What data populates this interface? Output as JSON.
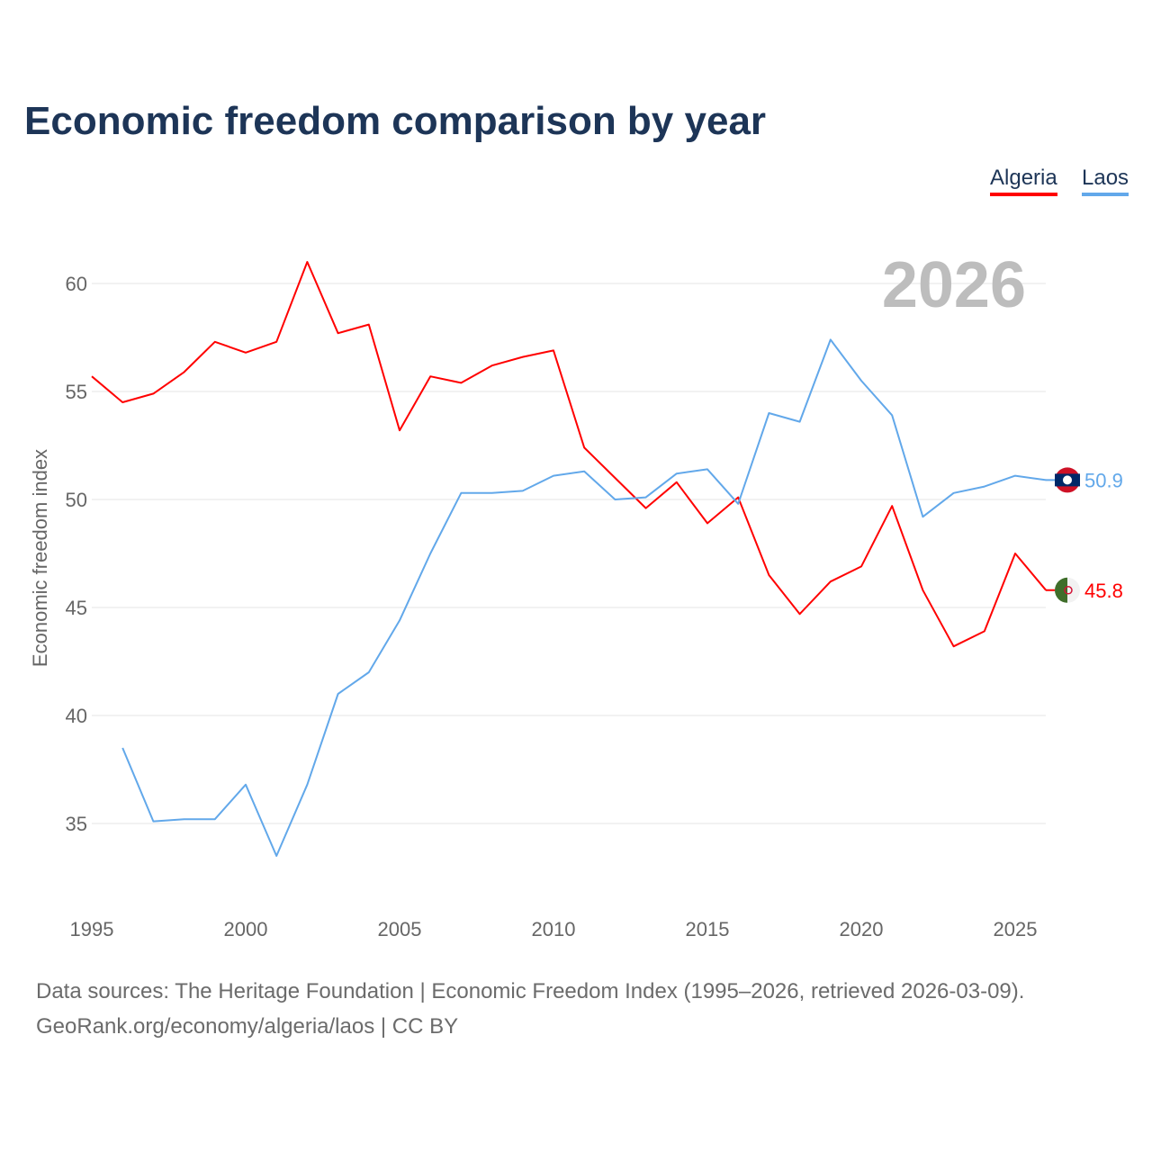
{
  "chart_data": {
    "type": "line",
    "title": "Economic freedom comparison by year",
    "ylabel": "Economic freedom index",
    "xlabel": "",
    "year_label": "2026",
    "xlim": [
      1995,
      2026
    ],
    "ylim": [
      31.5,
      62
    ],
    "x_ticks": [
      1995,
      2000,
      2005,
      2010,
      2015,
      2020,
      2025
    ],
    "y_ticks": [
      35,
      40,
      45,
      50,
      55,
      60
    ],
    "grid": true,
    "legend_position": "top-right",
    "series": [
      {
        "name": "Algeria",
        "color": "#ff0000",
        "end_label": "45.8",
        "x": [
          1995,
          1996,
          1997,
          1998,
          1999,
          2000,
          2001,
          2002,
          2003,
          2004,
          2005,
          2006,
          2007,
          2008,
          2009,
          2010,
          2011,
          2012,
          2013,
          2014,
          2015,
          2016,
          2017,
          2018,
          2019,
          2020,
          2021,
          2022,
          2023,
          2024,
          2025,
          2026
        ],
        "values": [
          55.7,
          54.5,
          54.9,
          55.9,
          57.3,
          56.8,
          57.3,
          61.0,
          57.7,
          58.1,
          53.2,
          55.7,
          55.4,
          56.2,
          56.6,
          56.9,
          52.4,
          51.0,
          49.6,
          50.8,
          48.9,
          50.1,
          46.5,
          44.7,
          46.2,
          46.9,
          49.7,
          45.8,
          43.2,
          43.9,
          47.5,
          45.8
        ]
      },
      {
        "name": "Laos",
        "color": "#62a8ea",
        "end_label": "50.9",
        "x": [
          1996,
          1997,
          1998,
          1999,
          2000,
          2001,
          2002,
          2003,
          2004,
          2005,
          2006,
          2007,
          2008,
          2009,
          2010,
          2011,
          2012,
          2013,
          2014,
          2015,
          2016,
          2017,
          2018,
          2019,
          2020,
          2021,
          2022,
          2023,
          2024,
          2025,
          2026
        ],
        "values": [
          38.5,
          35.1,
          35.2,
          35.2,
          36.8,
          33.5,
          36.8,
          41.0,
          42.0,
          44.4,
          47.5,
          50.3,
          50.3,
          50.4,
          51.1,
          51.3,
          50.0,
          50.1,
          51.2,
          51.4,
          49.8,
          54.0,
          53.6,
          57.4,
          55.5,
          53.9,
          49.2,
          50.3,
          50.6,
          51.1,
          50.9
        ]
      }
    ]
  },
  "source": {
    "line1": "Data sources: The Heritage Foundation | Economic Freedom Index (1995–2026, retrieved 2026-03-09).",
    "line2": "GeoRank.org/economy/algeria/laos | CC BY"
  }
}
